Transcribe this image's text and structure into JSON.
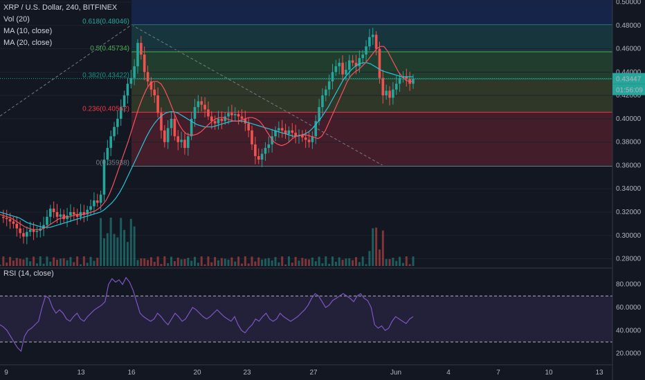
{
  "legend": {
    "symbol": "XRP / U.S. Dollar, 240, BITFINEX",
    "vol": "Vol (20)",
    "ma10": "MA (10, close)",
    "ma20": "MA (20, close)"
  },
  "rsi_legend": "RSI (14, close)",
  "price_axis_labels": [
    "0.50000",
    "0.48000",
    "0.46000",
    "0.44000",
    "0.42000",
    "0.40000",
    "0.38000",
    "0.36000",
    "0.34000",
    "0.32000",
    "0.30000",
    "0.28000"
  ],
  "rsi_axis_labels": [
    "80.0000",
    "60.0000",
    "40.0000",
    "20.0000"
  ],
  "current_price": "0.43447",
  "countdown": "01:56:09",
  "date_labels": [
    "9",
    "13",
    "16",
    "20",
    "23",
    "27",
    "Jun",
    "4",
    "7",
    "10",
    "13"
  ],
  "fib_levels": [
    {
      "label": "0.618(0.48046)",
      "price": 0.48046,
      "color": "#26a69a"
    },
    {
      "label": "0.5(0.45734)",
      "price": 0.45734,
      "color": "#4caf50"
    },
    {
      "label": "0.382(0.43422)",
      "price": 0.43422,
      "color": "#089981"
    },
    {
      "label": "0.236(0.40562)",
      "price": 0.40562,
      "color": "#f23645"
    },
    {
      "label": "0(0.35938)",
      "price": 0.35938,
      "color": "#787b86"
    }
  ],
  "colors": {
    "up": "#26a69a",
    "down": "#ef5350",
    "ma10": "#f7525f",
    "ma20": "#26c6da",
    "rsi": "#7e57c2",
    "background": "#131722"
  },
  "chart_data": {
    "type": "candlestick",
    "symbol": "XRP / U.S. Dollar",
    "timeframe": "240",
    "exchange": "BITFINEX",
    "ylim": [
      0.275,
      0.5
    ],
    "rsi_ylim": [
      15,
      90
    ],
    "rsi_bands": [
      70,
      30
    ],
    "ohlc_close_path": [
      0.316,
      0.315,
      0.314,
      0.312,
      0.31,
      0.306,
      0.302,
      0.299,
      0.303,
      0.305,
      0.303,
      0.304,
      0.306,
      0.309,
      0.316,
      0.323,
      0.32,
      0.316,
      0.318,
      0.314,
      0.317,
      0.32,
      0.318,
      0.316,
      0.32,
      0.318,
      0.322,
      0.325,
      0.33,
      0.328,
      0.335,
      0.365,
      0.375,
      0.385,
      0.393,
      0.4,
      0.41,
      0.42,
      0.43,
      0.435,
      0.445,
      0.465,
      0.455,
      0.44,
      0.432,
      0.425,
      0.42,
      0.405,
      0.39,
      0.38,
      0.392,
      0.4,
      0.385,
      0.38,
      0.382,
      0.375,
      0.385,
      0.4,
      0.41,
      0.415,
      0.412,
      0.408,
      0.402,
      0.398,
      0.396,
      0.4,
      0.398,
      0.402,
      0.405,
      0.403,
      0.404,
      0.402,
      0.4,
      0.396,
      0.39,
      0.378,
      0.368,
      0.365,
      0.37,
      0.375,
      0.378,
      0.385,
      0.39,
      0.392,
      0.39,
      0.387,
      0.39,
      0.388,
      0.385,
      0.386,
      0.384,
      0.382,
      0.38,
      0.385,
      0.398,
      0.41,
      0.42,
      0.425,
      0.432,
      0.44,
      0.445,
      0.448,
      0.438,
      0.442,
      0.45,
      0.448,
      0.445,
      0.452,
      0.455,
      0.462,
      0.47,
      0.472,
      0.46,
      0.435,
      0.42,
      0.424,
      0.418,
      0.425,
      0.43,
      0.435,
      0.436,
      0.434,
      0.43,
      0.4345
    ],
    "rsi_path": [
      45,
      43,
      40,
      35,
      30,
      25,
      22,
      35,
      40,
      42,
      45,
      48,
      60,
      70,
      68,
      60,
      55,
      58,
      55,
      50,
      48,
      52,
      55,
      50,
      48,
      52,
      55,
      58,
      60,
      62,
      65,
      80,
      85,
      82,
      84,
      80,
      86,
      82,
      75,
      65,
      55,
      52,
      50,
      48,
      50,
      55,
      52,
      48,
      45,
      50,
      55,
      52,
      48,
      50,
      55,
      60,
      58,
      55,
      52,
      50,
      52,
      55,
      58,
      55,
      52,
      50,
      48,
      52,
      45,
      40,
      38,
      42,
      45,
      50,
      48,
      52,
      55,
      50,
      48,
      50,
      55,
      52,
      50,
      48,
      50,
      52,
      55,
      58,
      62,
      68,
      72,
      70,
      65,
      60,
      62,
      66,
      68,
      70,
      72,
      70,
      68,
      65,
      70,
      72,
      68,
      66,
      60,
      45,
      42,
      44,
      40,
      42,
      48,
      52,
      50,
      48,
      46,
      50,
      52
    ],
    "ma10_path": [
      0.318,
      0.317,
      0.316,
      0.315,
      0.313,
      0.311,
      0.309,
      0.307,
      0.306,
      0.305,
      0.305,
      0.305,
      0.306,
      0.308,
      0.31,
      0.312,
      0.314,
      0.315,
      0.316,
      0.316,
      0.317,
      0.318,
      0.318,
      0.318,
      0.319,
      0.32,
      0.321,
      0.323,
      0.326,
      0.33,
      0.336,
      0.344,
      0.353,
      0.362,
      0.371,
      0.38,
      0.39,
      0.4,
      0.41,
      0.418,
      0.425,
      0.43,
      0.432,
      0.432,
      0.43,
      0.425,
      0.418,
      0.41,
      0.402,
      0.395,
      0.39,
      0.387,
      0.386,
      0.386,
      0.387,
      0.389,
      0.392,
      0.395,
      0.398,
      0.4,
      0.401,
      0.401,
      0.4,
      0.399,
      0.398,
      0.398,
      0.399,
      0.4,
      0.401,
      0.401,
      0.4,
      0.398,
      0.394,
      0.389,
      0.384,
      0.38,
      0.378,
      0.377,
      0.378,
      0.38,
      0.383,
      0.385,
      0.386,
      0.386,
      0.386,
      0.385,
      0.384,
      0.383,
      0.385,
      0.39,
      0.397,
      0.404,
      0.411,
      0.418,
      0.425,
      0.432,
      0.437,
      0.44,
      0.442,
      0.445,
      0.448,
      0.452,
      0.456,
      0.46,
      0.462,
      0.462,
      0.458,
      0.452,
      0.446,
      0.44,
      0.436,
      0.433,
      0.432,
      0.432
    ],
    "ma20_path": [
      0.32,
      0.319,
      0.318,
      0.317,
      0.316,
      0.315,
      0.313,
      0.311,
      0.31,
      0.309,
      0.308,
      0.307,
      0.307,
      0.307,
      0.308,
      0.309,
      0.31,
      0.311,
      0.312,
      0.313,
      0.314,
      0.315,
      0.316,
      0.317,
      0.318,
      0.319,
      0.32,
      0.322,
      0.325,
      0.328,
      0.332,
      0.337,
      0.343,
      0.35,
      0.357,
      0.364,
      0.371,
      0.378,
      0.385,
      0.391,
      0.396,
      0.4,
      0.403,
      0.405,
      0.406,
      0.406,
      0.405,
      0.403,
      0.401,
      0.399,
      0.397,
      0.395,
      0.394,
      0.393,
      0.393,
      0.393,
      0.394,
      0.395,
      0.396,
      0.397,
      0.398,
      0.398,
      0.398,
      0.398,
      0.397,
      0.396,
      0.395,
      0.394,
      0.393,
      0.392,
      0.391,
      0.39,
      0.389,
      0.388,
      0.387,
      0.386,
      0.385,
      0.385,
      0.386,
      0.387,
      0.389,
      0.392,
      0.396,
      0.4,
      0.405,
      0.41,
      0.416,
      0.422,
      0.428,
      0.434,
      0.438,
      0.442,
      0.445,
      0.447,
      0.448,
      0.448,
      0.447,
      0.445,
      0.443,
      0.441,
      0.44,
      0.439,
      0.438,
      0.437,
      0.436,
      0.436,
      0.436,
      0.436
    ]
  }
}
